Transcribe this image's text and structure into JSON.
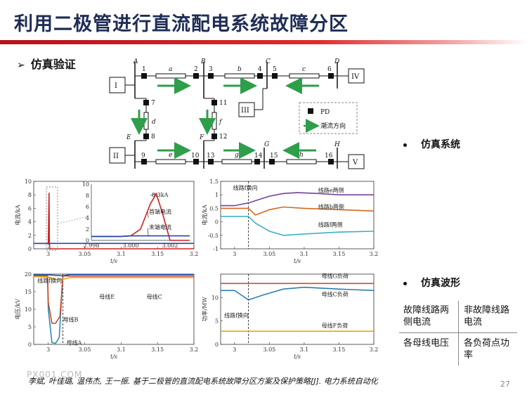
{
  "header": {
    "title": "利用二极管进行直流配电系统故障分区"
  },
  "section": {
    "arrow": "➢",
    "label": "仿真验证"
  },
  "bullets": {
    "system": "仿真系统",
    "waveform": "仿真波形"
  },
  "summary_table": {
    "cells": [
      [
        "故障线路两侧电流",
        "非故障线路电流"
      ],
      [
        "各母线电压",
        "各负荷点功率"
      ]
    ]
  },
  "citation": "李斌, 叶佳璐, 温伟杰, 王一振. 基于二极管的直流配电系统故障分区方案及保护策略[J]. 电力系统自动化",
  "watermark": "PX001.COM",
  "page_number": "27",
  "diagram": {
    "buses": [
      "A",
      "B",
      "C",
      "D",
      "E",
      "F",
      "G",
      "H"
    ],
    "nodes": [
      "1",
      "2",
      "3",
      "4",
      "5",
      "6",
      "7",
      "8",
      "9",
      "10",
      "11",
      "12",
      "13",
      "14",
      "15",
      "16"
    ],
    "lines": [
      "a",
      "b",
      "c",
      "d",
      "e",
      "f",
      "g",
      "h"
    ],
    "sources": [
      "I",
      "II",
      "III",
      "IV",
      "V"
    ],
    "legend": {
      "pd": "PD",
      "flow": "潮流方向"
    },
    "colors": {
      "flow_arrow": "#2e9e4a",
      "pd": "#111111"
    }
  },
  "chart_data": [
    {
      "type": "line",
      "ylabel": "电流/kA",
      "xlabel": "t/s",
      "xlim": [
        2.98,
        3.2
      ],
      "ylim": [
        0,
        10
      ],
      "x_ticks": [
        "3",
        "3.05",
        "3.1",
        "3.15",
        "3.2"
      ],
      "y_ticks": [
        "0",
        "2",
        "4",
        "6",
        "8",
        "10"
      ],
      "series": [
        {
          "color": "#d12020",
          "x": [
            2.98,
            2.999,
            3.0,
            3.001,
            3.0015,
            3.002,
            3.2
          ],
          "y": [
            0.8,
            0.8,
            0.9,
            8.3,
            1.0,
            0,
            0
          ]
        },
        {
          "color": "#2048b0",
          "x": [
            2.98,
            2.999,
            3.0,
            3.002,
            3.2
          ],
          "y": [
            0.8,
            0.8,
            0.7,
            0.8,
            0.8
          ]
        }
      ],
      "inset": {
        "xlim": [
          2.998,
          3.003
        ],
        "ylim": [
          0,
          10
        ],
        "x_ticks": [
          "2.998",
          "3.000",
          "3.002"
        ],
        "y_ticks": [
          "0",
          "2",
          "4",
          "6",
          "8",
          "10"
        ],
        "series": [
          {
            "name": "首端电流",
            "color": "#d12020",
            "x": [
              2.998,
              2.9995,
              3.0,
              3.0005,
              3.001,
              3.0013,
              3.0016,
              3.002,
              3.003
            ],
            "y": [
              0.7,
              0.7,
              0.8,
              2,
              6.5,
              8.3,
              5,
              0,
              0
            ]
          },
          {
            "name": "末端电流",
            "color": "#2048b0",
            "x": [
              2.998,
              2.9995,
              3.0,
              3.0008,
              3.003
            ],
            "y": [
              0.7,
              0.7,
              0.8,
              0.8,
              0.8
            ]
          }
        ],
        "annotations": [
          "8.3kA",
          "首端电流",
          "末端电流"
        ]
      }
    },
    {
      "type": "line",
      "ylabel": "电流/kA",
      "xlabel": "t/s",
      "xlim": [
        2.98,
        3.2
      ],
      "ylim": [
        -1,
        1.5
      ],
      "x_ticks": [
        "3",
        "3.05",
        "3.1",
        "3.15",
        "3.2"
      ],
      "y_ticks": [
        "-1",
        "-0.5",
        "0",
        "0.5",
        "1",
        "1.5"
      ],
      "event_x": 3.02,
      "annotations": [
        "线路f换向"
      ],
      "series": [
        {
          "name": "线路e两侧",
          "color": "#7a3f9a",
          "x": [
            2.98,
            3.0,
            3.01,
            3.02,
            3.05,
            3.07,
            3.09,
            3.12,
            3.15,
            3.2
          ],
          "y": [
            0.6,
            0.6,
            0.65,
            0.7,
            0.95,
            1.05,
            1.08,
            1.05,
            1.0,
            1.0
          ]
        },
        {
          "name": "线路b两侧",
          "color": "#d2691e",
          "x": [
            2.98,
            3.0,
            3.02,
            3.03,
            3.05,
            3.07,
            3.1,
            3.15,
            3.2
          ],
          "y": [
            0.5,
            0.5,
            0.5,
            0.25,
            0.45,
            0.55,
            0.5,
            0.45,
            0.4
          ]
        },
        {
          "name": "线路f两侧",
          "color": "#40b0c0",
          "x": [
            2.98,
            3.0,
            3.02,
            3.03,
            3.05,
            3.07,
            3.1,
            3.15,
            3.2
          ],
          "y": [
            0.2,
            0.2,
            0.2,
            -0.05,
            -0.35,
            -0.5,
            -0.45,
            -0.38,
            -0.35
          ]
        }
      ]
    },
    {
      "type": "line",
      "ylabel": "电压/kV",
      "xlabel": "t/s",
      "xlim": [
        2.98,
        3.2
      ],
      "ylim": [
        0,
        20
      ],
      "x_ticks": [
        "3",
        "3.05",
        "3.1",
        "3.15",
        "3.2"
      ],
      "y_ticks": [
        "0",
        "5",
        "10",
        "15",
        "20"
      ],
      "event_x": 3.02,
      "annotations": [
        "线路f换向"
      ],
      "series": [
        {
          "name": "母线A",
          "color": "#2e8bb0",
          "x": [
            2.98,
            2.999,
            3.0,
            3.005,
            3.01,
            3.015,
            3.02,
            3.03,
            3.2
          ],
          "y": [
            19.5,
            19.5,
            10,
            0.5,
            0.3,
            2,
            19.5,
            19.8,
            19.8
          ]
        },
        {
          "name": "母线B",
          "color": "#c84b2b",
          "x": [
            2.98,
            2.999,
            3.0,
            3.005,
            3.01,
            3.016,
            3.02,
            3.03,
            3.2
          ],
          "y": [
            19.5,
            19.5,
            12,
            6,
            6,
            8,
            19.5,
            19.4,
            19.4
          ]
        },
        {
          "name": "母线C",
          "color": "#e0a800",
          "x": [
            2.98,
            3.0,
            3.01,
            3.02,
            3.03,
            3.2
          ],
          "y": [
            19.3,
            19.2,
            18.5,
            18.5,
            19.0,
            19.0
          ]
        },
        {
          "name": "母线E",
          "color": "#2048b0",
          "x": [
            2.98,
            3.0,
            3.02,
            3.03,
            3.2
          ],
          "y": [
            19.8,
            19.8,
            19.5,
            19.9,
            19.9
          ]
        }
      ]
    },
    {
      "type": "line",
      "ylabel": "功率/MW",
      "xlabel": "t/s",
      "xlim": [
        2.98,
        3.2
      ],
      "ylim": [
        0,
        15
      ],
      "x_ticks": [
        "3",
        "3.05",
        "3.1",
        "3.15",
        "3.2"
      ],
      "y_ticks": [
        "0",
        "5",
        "10"
      ],
      "event_x": 3.02,
      "annotations": [
        "线路f换向"
      ],
      "series": [
        {
          "name": "母线G负荷",
          "color": "#c84b2b",
          "x": [
            2.98,
            3.2
          ],
          "y": [
            13.0,
            13.0
          ]
        },
        {
          "name": "母线C负荷",
          "color": "#2e7db0",
          "x": [
            2.98,
            3.0,
            3.01,
            3.02,
            3.04,
            3.07,
            3.1,
            3.15,
            3.2
          ],
          "y": [
            11.5,
            11.5,
            10.5,
            9.5,
            10.5,
            11.8,
            12.2,
            11.8,
            11.5
          ]
        },
        {
          "name": "母线F负荷",
          "color": "#e0a800",
          "x": [
            2.98,
            3.2
          ],
          "y": [
            2.8,
            2.8
          ]
        }
      ]
    }
  ]
}
